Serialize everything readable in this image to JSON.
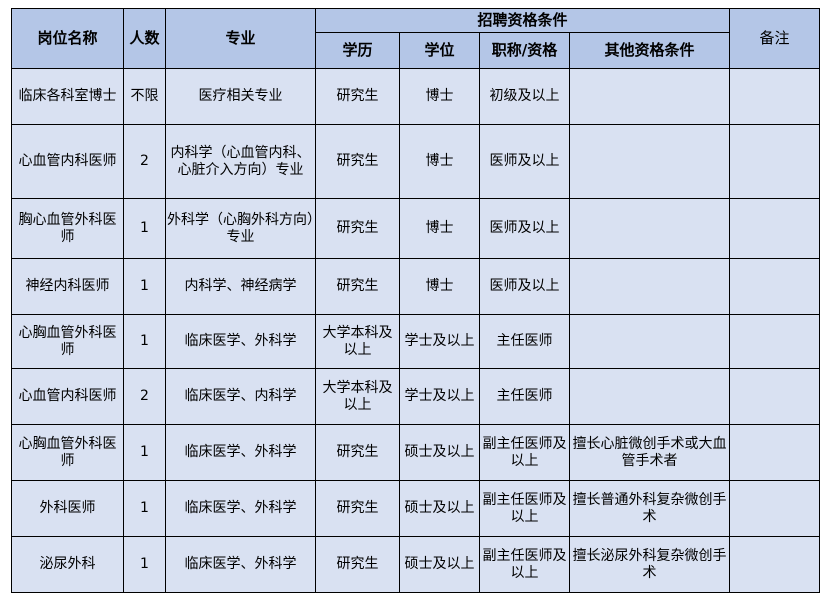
{
  "table": {
    "headers": {
      "position": "岗位名称",
      "count": "人数",
      "major": "专业",
      "requirements_group": "招聘资格条件",
      "education": "学历",
      "degree": "学位",
      "title": "职称/资格",
      "other": "其他资格条件",
      "remarks": "备注"
    },
    "rows": [
      {
        "position": "临床各科室博士",
        "count": "不限",
        "major": "医疗相关专业",
        "education": "研究生",
        "degree": "博士",
        "title": "初级及以上",
        "other": "",
        "remarks": ""
      },
      {
        "position": "心血管内科医师",
        "count": "2",
        "major": "内科学（心血管内科、心脏介入方向）专业",
        "education": "研究生",
        "degree": "博士",
        "title": "医师及以上",
        "other": "",
        "remarks": ""
      },
      {
        "position": "胸心血管外科医师",
        "count": "1",
        "major": "外科学（心胸外科方向）专业",
        "education": "研究生",
        "degree": "博士",
        "title": "医师及以上",
        "other": "",
        "remarks": ""
      },
      {
        "position": "神经内科医师",
        "count": "1",
        "major": "内科学、神经病学",
        "education": "研究生",
        "degree": "博士",
        "title": "医师及以上",
        "other": "",
        "remarks": ""
      },
      {
        "position": "心胸血管外科医师",
        "count": "1",
        "major": "临床医学、外科学",
        "education": "大学本科及以上",
        "degree": "学士及以上",
        "title": "主任医师",
        "other": "",
        "remarks": ""
      },
      {
        "position": "心血管内科医师",
        "count": "2",
        "major": "临床医学、内科学",
        "education": "大学本科及以上",
        "degree": "学士及以上",
        "title": "主任医师",
        "other": "",
        "remarks": ""
      },
      {
        "position": "心胸血管外科医师",
        "count": "1",
        "major": "临床医学、外科学",
        "education": "研究生",
        "degree": "硕士及以上",
        "title": "副主任医师及以上",
        "other": "擅长心脏微创手术或大血管手术者",
        "remarks": ""
      },
      {
        "position": "外科医师",
        "count": "1",
        "major": "临床医学、外科学",
        "education": "研究生",
        "degree": "硕士及以上",
        "title": "副主任医师及以上",
        "other": "擅长普通外科复杂微创手术",
        "remarks": ""
      },
      {
        "position": "泌尿外科",
        "count": "1",
        "major": "临床医学、外科学",
        "education": "研究生",
        "degree": "硕士及以上",
        "title": "副主任医师及以上",
        "other": "擅长泌尿外科复杂微创手术",
        "remarks": ""
      }
    ]
  },
  "colors": {
    "header_bg": "#b4c6e7",
    "body_bg": "#d9e1f2",
    "border": "#000000"
  }
}
